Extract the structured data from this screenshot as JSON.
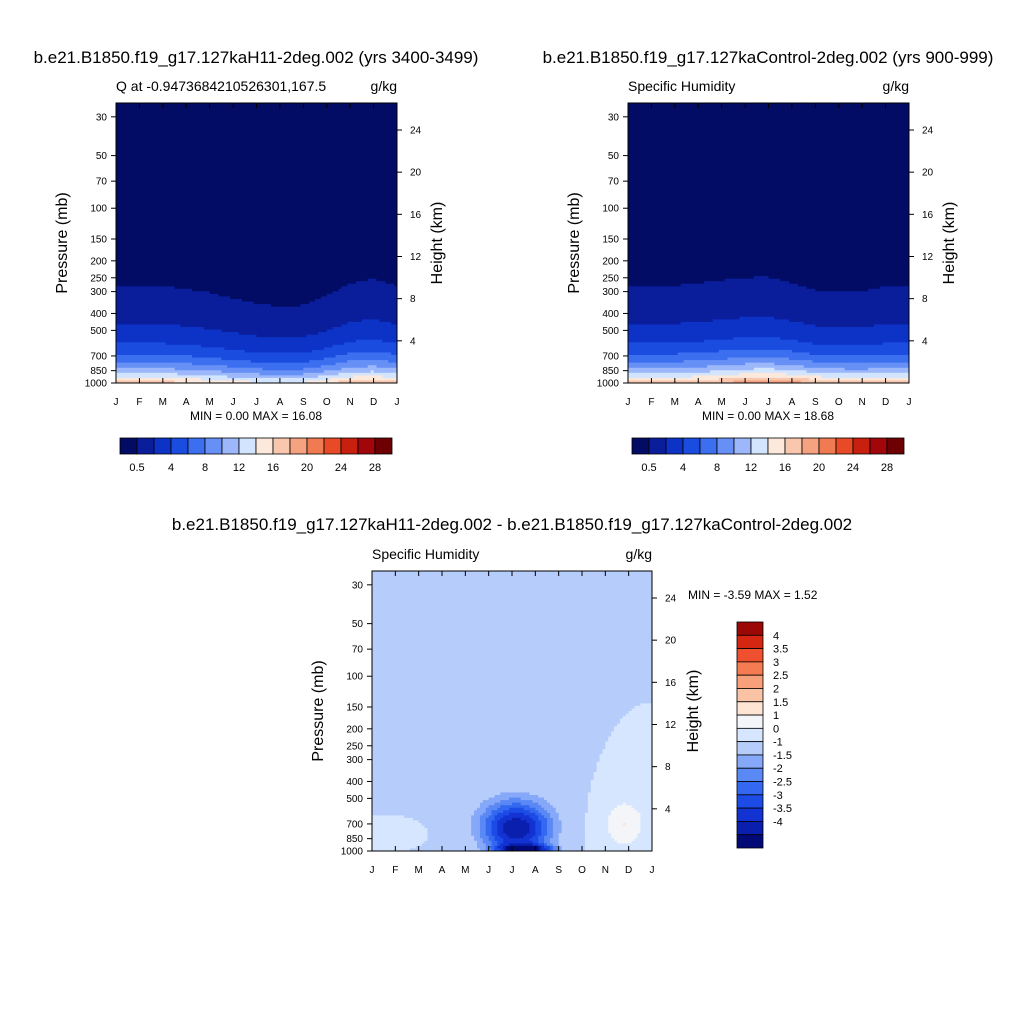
{
  "panels": [
    {
      "run_title": "b.e21.B1850.f19_g17.127kaH11-2deg.002 (yrs 3400-3499)",
      "left_label": "Q at -0.9473684210526301,167.5",
      "right_label": "g/kg",
      "ylabel": "Pressure (mb)",
      "y2label": "Height (km)",
      "stats": "MIN =   0.00 MAX =  16.08"
    },
    {
      "run_title": "b.e21.B1850.f19_g17.127kaControl-2deg.002 (yrs 900-999)",
      "left_label": "Specific Humidity",
      "right_label": "g/kg",
      "ylabel": "Pressure (mb)",
      "y2label": "Height (km)",
      "stats": "MIN =   0.00 MAX =  18.68"
    },
    {
      "run_title": "b.e21.B1850.f19_g17.127kaH11-2deg.002 - b.e21.B1850.f19_g17.127kaControl-2deg.002",
      "left_label": "Specific Humidity",
      "right_label": "g/kg",
      "ylabel": "Pressure (mb)",
      "y2label": "Height (km)",
      "stats": "MIN =  -3.59 MAX =   1.52"
    }
  ],
  "chart_data": [
    {
      "type": "heatmap",
      "title": "b.e21.B1850.f19_g17.127kaH11-2deg.002 (yrs 3400-3499)",
      "subtitle_left": "Q at -0.9473684210526301,167.5",
      "units": "g/kg",
      "xlabel": "",
      "ylabel": "Pressure (mb)",
      "y2label": "Height (km)",
      "x_ticks": [
        "J",
        "F",
        "M",
        "A",
        "M",
        "J",
        "J",
        "A",
        "S",
        "O",
        "N",
        "D",
        "J"
      ],
      "y_ticks": [
        30,
        50,
        70,
        100,
        150,
        200,
        250,
        300,
        400,
        500,
        700,
        850,
        1000
      ],
      "y_scale": "log",
      "ylim": [
        1000,
        25
      ],
      "y2_ticks": [
        4,
        8,
        12,
        16,
        20,
        24
      ],
      "min": 0.0,
      "max": 16.08,
      "contour_levels": [
        0.5,
        2,
        4,
        6,
        8,
        10,
        12,
        14,
        16,
        18,
        20,
        22,
        24,
        26,
        28
      ],
      "colorbar_labels": [
        "0.5",
        "4",
        "8",
        "12",
        "16",
        "20",
        "24",
        "28"
      ],
      "colorbar_placement": "bottom",
      "colors": [
        "#020c64",
        "#0a1e9c",
        "#0d32c6",
        "#1a4ce0",
        "#3c6ef0",
        "#6690f6",
        "#9cb8fb",
        "#d2e4fe",
        "#fde9dc",
        "#f8c7ae",
        "#f4a27f",
        "#f07a52",
        "#e84a28",
        "#c8200f",
        "#a0060a",
        "#6e0003"
      ],
      "humidity_profile": {
        "months": [
          "J",
          "F",
          "M",
          "A",
          "M",
          "J",
          "J",
          "A",
          "S",
          "O",
          "N",
          "D",
          "J"
        ],
        "base_scale": [
          1.0,
          1.0,
          1.0,
          0.97,
          0.94,
          0.9,
          0.86,
          0.85,
          0.86,
          0.94,
          1.03,
          1.05,
          1.0
        ],
        "height_scale": [
          1.0,
          1.0,
          1.0,
          0.98,
          0.95,
          0.9,
          0.86,
          0.83,
          0.84,
          0.92,
          1.02,
          1.06,
          1.0
        ]
      }
    },
    {
      "type": "heatmap",
      "title": "b.e21.B1850.f19_g17.127kaControl-2deg.002 (yrs 900-999)",
      "subtitle_left": "Specific Humidity",
      "units": "g/kg",
      "xlabel": "",
      "ylabel": "Pressure (mb)",
      "y2label": "Height (km)",
      "x_ticks": [
        "J",
        "F",
        "M",
        "A",
        "M",
        "J",
        "J",
        "A",
        "S",
        "O",
        "N",
        "D",
        "J"
      ],
      "y_ticks": [
        30,
        50,
        70,
        100,
        150,
        200,
        250,
        300,
        400,
        500,
        700,
        850,
        1000
      ],
      "y_scale": "log",
      "ylim": [
        1000,
        25
      ],
      "y2_ticks": [
        4,
        8,
        12,
        16,
        20,
        24
      ],
      "min": 0.0,
      "max": 18.68,
      "contour_levels": [
        0.5,
        2,
        4,
        6,
        8,
        10,
        12,
        14,
        16,
        18,
        20,
        22,
        24,
        26,
        28
      ],
      "colorbar_labels": [
        "0.5",
        "4",
        "8",
        "12",
        "16",
        "20",
        "24",
        "28"
      ],
      "colorbar_placement": "bottom",
      "colors": [
        "#020c64",
        "#0a1e9c",
        "#0d32c6",
        "#1a4ce0",
        "#3c6ef0",
        "#6690f6",
        "#9cb8fb",
        "#d2e4fe",
        "#fde9dc",
        "#f8c7ae",
        "#f4a27f",
        "#f07a52",
        "#e84a28",
        "#c8200f",
        "#a0060a",
        "#6e0003"
      ],
      "humidity_profile": {
        "months": [
          "J",
          "F",
          "M",
          "A",
          "M",
          "J",
          "J",
          "A",
          "S",
          "O",
          "N",
          "D",
          "J"
        ],
        "base_scale": [
          1.0,
          1.0,
          1.02,
          1.04,
          1.08,
          1.14,
          1.16,
          1.13,
          1.07,
          1.02,
          1.0,
          1.0,
          1.0
        ],
        "height_scale": [
          1.0,
          1.0,
          1.0,
          1.02,
          1.04,
          1.05,
          1.05,
          1.0,
          0.94,
          0.93,
          0.95,
          1.0,
          1.0
        ]
      }
    },
    {
      "type": "heatmap",
      "title": "b.e21.B1850.f19_g17.127kaH11-2deg.002 - b.e21.B1850.f19_g17.127kaControl-2deg.002",
      "subtitle_left": "Specific Humidity",
      "units": "g/kg",
      "xlabel": "",
      "ylabel": "Pressure (mb)",
      "y2label": "Height (km)",
      "x_ticks": [
        "J",
        "F",
        "M",
        "A",
        "M",
        "J",
        "J",
        "A",
        "S",
        "O",
        "N",
        "D",
        "J"
      ],
      "y_ticks": [
        30,
        50,
        70,
        100,
        150,
        200,
        250,
        300,
        400,
        500,
        700,
        850,
        1000
      ],
      "y_scale": "log",
      "ylim": [
        1000,
        25
      ],
      "y2_ticks": [
        4,
        8,
        12,
        16,
        20,
        24
      ],
      "min": -3.59,
      "max": 1.52,
      "contour_levels": [
        -4,
        -3.5,
        -3,
        -2.5,
        -2,
        -1.5,
        -1,
        0,
        1,
        1.5,
        2,
        2.5,
        3,
        3.5,
        4
      ],
      "colorbar_labels": [
        "4",
        "3.5",
        "3",
        "2.5",
        "2",
        "1.5",
        "1",
        "0",
        "-1",
        "-1.5",
        "-2",
        "-2.5",
        "-3",
        "-3.5",
        "-4"
      ],
      "colorbar_placement": "right",
      "colors": [
        "#020a78",
        "#0a1fae",
        "#1233d2",
        "#1c4be6",
        "#3468f0",
        "#5a88f4",
        "#86a8f8",
        "#b6cdfb",
        "#d6e6fe",
        "#f4f5f9",
        "#fde4d3",
        "#fbc3a6",
        "#f8a07a",
        "#f47b52",
        "#ef5130",
        "#d42610",
        "#9c0806"
      ],
      "anomaly_features": [
        {
          "sign": "negative",
          "month_center": 6.2,
          "pressure_center": 760,
          "peak": -3.59
        },
        {
          "sign": "negative",
          "month_center": 6.6,
          "pressure_center": 975,
          "peak": -3.0
        },
        {
          "sign": "positive",
          "month_center": 10.8,
          "pressure_center": 700,
          "peak": 1.52
        },
        {
          "sign": "positive",
          "month_center": 1.1,
          "pressure_center": 780,
          "peak": 0.5
        }
      ]
    }
  ]
}
